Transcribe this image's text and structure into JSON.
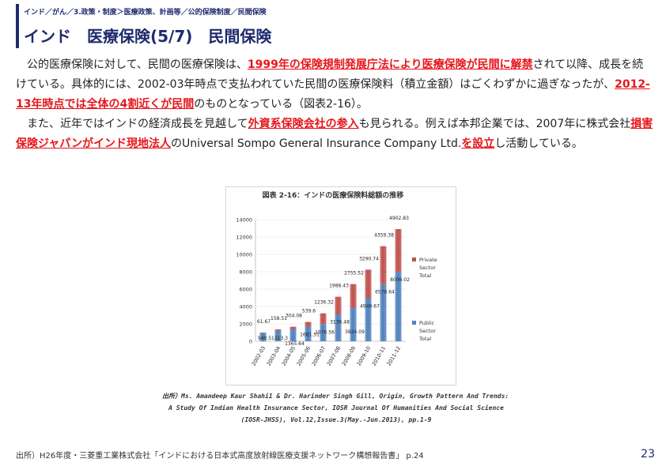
{
  "breadcrumb": "インド／がん／3.政策・制度＞医療政策、計画等／公的保険制度／民間保険",
  "title": "インド　医療保険(5/7)　民間保険",
  "paragraph1": {
    "t1": "公的医療保険に対して、民間の医療保険は、",
    "h1": "1999年の保険規制発展庁法により医療保険が民間に解禁",
    "t2": "されて以降、成長を続けている。具体的には、2002-03年時点で支払われていた民間の医療保険料（積立金額）はごくわずかに過ぎなったが、",
    "h2": "2012-13年時点では全体の4割近くが民間",
    "t3": "のものとなっている（図表2-16）。"
  },
  "paragraph2": {
    "t1": "また、近年ではインドの経済成長を見越して",
    "h1": "外資系保険会社の参入",
    "t2": "も見られる。例えば本邦企業では、2007年に株式会社",
    "h2": "損害保険ジャパンがインド現地法人",
    "t3": "のUniversal Sompo General Insurance Company Ltd.",
    "h3": "を設立",
    "t4": "し活動している。"
  },
  "figure": {
    "title": "図表 2-16：インドの医療保険料総額の推移",
    "source_lines": [
      "出所）Ms. Amandeep Kaur Shahi1 & Dr. Harinder Singh Gill, Origin, Growth Pattern And Trends:",
      "A Study Of Indian Health Insurance Sector, IOSR Journal Of Humanities And Social Science",
      "(IOSR-JHSS), Vol.12,Issue.3(May.-Jun.2013), pp.1-9"
    ]
  },
  "chart_data": {
    "type": "bar",
    "stacked": true,
    "categories": [
      "2002-03",
      "2003-04",
      "2004-05",
      "2005-06",
      "2006-07",
      "2007-08",
      "2008-09",
      "2009-10",
      "2010-11",
      "2011-12"
    ],
    "series": [
      {
        "name": "Public Sector Total",
        "color": "#4f81bd",
        "values": [
          940.5,
          1213.3,
          1365.64,
          1681.51,
          1976.56,
          3136.48,
          3824.09,
          4949.67,
          6578.64,
          8006.02
        ]
      },
      {
        "name": "Private Sector Total",
        "color": "#c0504d",
        "values": [
          61.67,
          158.51,
          304.08,
          539.6,
          1236.32,
          1988.43,
          2755.52,
          3290.74,
          4359.38,
          4902.83
        ]
      }
    ],
    "ylim": [
      0,
      14000
    ],
    "yticks": [
      0,
      2000,
      4000,
      6000,
      8000,
      10000,
      12000,
      14000
    ],
    "legend_position": "right",
    "grid": true
  },
  "footer": {
    "source": "出所）H26年度・三菱重工業株式会社「インドにおける日本式高度放射線医療支援ネットワーク構想報告書」 p.24",
    "page_number": "23"
  }
}
